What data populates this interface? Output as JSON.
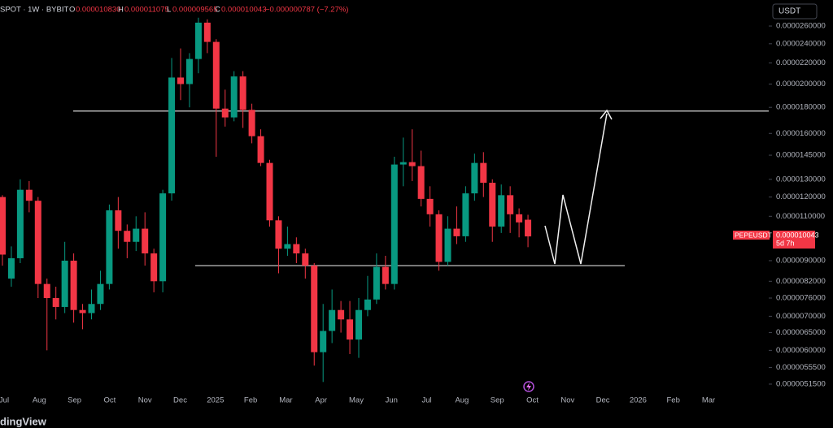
{
  "header": {
    "symbol": "SPOT · 1W · BYBIT",
    "open_label": "O",
    "open": "0.000010830",
    "high_label": "H",
    "high": "0.000011075",
    "low_label": "L",
    "low": "0.000009565",
    "close_label": "C",
    "close": "0.000010043",
    "change": "−0.000000787 (−7.27%)"
  },
  "currency_button": "USDT",
  "price_tag": {
    "symbol": "PEPEUSDT",
    "price": "0.000010043",
    "countdown": "5d 7h"
  },
  "watermark": "dingView",
  "chart_data": {
    "type": "candlestick",
    "log_scale": true,
    "up_color": "#089981",
    "down_color": "#f23645",
    "ylim": [
      4.95e-06,
      2.75e-05
    ],
    "yticks": [
      {
        "value": 2.6e-05,
        "label": "0.0000260000"
      },
      {
        "value": 2.4e-05,
        "label": "0.0000240000"
      },
      {
        "value": 2.2e-05,
        "label": "0.0000220000"
      },
      {
        "value": 2e-05,
        "label": "0.0000200000"
      },
      {
        "value": 1.8e-05,
        "label": "0.0000180000"
      },
      {
        "value": 1.6e-05,
        "label": "0.0000160000"
      },
      {
        "value": 1.45e-05,
        "label": "0.0000145000"
      },
      {
        "value": 1.3e-05,
        "label": "0.0000130000"
      },
      {
        "value": 1.2e-05,
        "label": "0.0000120000"
      },
      {
        "value": 1.1e-05,
        "label": "0.0000110000"
      },
      {
        "value": 9e-06,
        "label": "0.0000090000"
      },
      {
        "value": 8.2e-06,
        "label": "0.0000082000"
      },
      {
        "value": 7.6e-06,
        "label": "0.0000076000"
      },
      {
        "value": 7e-06,
        "label": "0.0000070000"
      },
      {
        "value": 6.5e-06,
        "label": "0.0000065000"
      },
      {
        "value": 6e-06,
        "label": "0.0000060000"
      },
      {
        "value": 5.55e-06,
        "label": "0.0000055500"
      },
      {
        "value": 5.15e-06,
        "label": "0.0000051500"
      }
    ],
    "x_labels": [
      "Jul",
      "Aug",
      "Sep",
      "Oct",
      "Nov",
      "Dec",
      "2025",
      "Feb",
      "Mar",
      "Apr",
      "May",
      "Jun",
      "Jul",
      "Aug",
      "Sep",
      "Oct",
      "Nov",
      "Dec",
      "2026",
      "Feb",
      "Mar"
    ],
    "open": [
      1.2e-05,
      8.3e-06,
      9.1e-06,
      1.24e-05,
      1.18e-05,
      8.1e-06,
      7.6e-06,
      7.3e-06,
      9e-06,
      7.2e-06,
      7.1e-06,
      7.4e-06,
      8.1e-06,
      1.13e-05,
      1.03e-05,
      9.8e-06,
      1.04e-05,
      9.3e-06,
      8.2e-06,
      1.22e-05,
      2.06e-05,
      2e-05,
      2.24e-05,
      2.64e-05,
      2.42e-05,
      1.79e-05,
      1.72e-05,
      2.07e-05,
      1.78e-05,
      1.58e-05,
      1.4e-05,
      1.08e-05,
      9.5e-06,
      9.7e-06,
      9.3e-06,
      8.8e-06,
      5.95e-06,
      6.55e-06,
      7.2e-06,
      6.9e-06,
      6.3e-06,
      7.2e-06,
      7.55e-06,
      8.75e-06,
      8.1e-06,
      1.39e-05,
      1.405e-05,
      1.38e-05,
      1.19e-05,
      1.11e-05,
      8.95e-06,
      1.04e-05,
      1.005e-05,
      1.22e-05,
      1.4e-05,
      1.28e-05,
      1.05e-05,
      1.21e-05,
      1.11e-05,
      1.083e-05
    ],
    "high": [
      1.21e-05,
      9.6e-06,
      1.3e-05,
      1.29e-05,
      1.2e-05,
      8.3e-06,
      8e-06,
      9.8e-06,
      9.3e-06,
      7.4e-06,
      7.9e-06,
      8.6e-06,
      1.16e-05,
      1.2e-05,
      1.06e-05,
      1.1e-05,
      1.12e-05,
      9.5e-06,
      1.24e-05,
      2.25e-05,
      2.35e-05,
      2.3e-05,
      2.7e-05,
      2.68e-05,
      2.45e-05,
      1.95e-05,
      2.12e-05,
      2.12e-05,
      1.83e-05,
      1.63e-05,
      1.42e-05,
      1.1e-05,
      1.05e-05,
      1e-05,
      9.5e-06,
      8.9e-06,
      7.4e-06,
      7.9e-06,
      7.5e-06,
      7.5e-06,
      7.6e-06,
      8.4e-06,
      9.3e-06,
      9.2e-06,
      1.44e-05,
      1.57e-05,
      1.63e-05,
      1.48e-05,
      1.26e-05,
      1.13e-05,
      1.1e-05,
      1.15e-05,
      1.26e-05,
      1.46e-05,
      1.47e-05,
      1.3e-05,
      1.27e-05,
      1.26e-05,
      1.14e-05,
      1.1075e-05
    ],
    "low": [
      8.8e-06,
      8e-06,
      8.9e-06,
      1.12e-05,
      7.6e-06,
      6e-06,
      6.9e-06,
      7.1e-06,
      6.8e-06,
      6.6e-06,
      6.9e-06,
      7.2e-06,
      7.9e-06,
      9.5e-06,
      9.1e-06,
      9.4e-06,
      8.8e-06,
      7.8e-06,
      7.8e-06,
      1.18e-05,
      1.86e-05,
      1.8e-05,
      2.1e-05,
      2.3e-05,
      1.44e-05,
      1.65e-05,
      1.69e-05,
      1.64e-05,
      1.53e-05,
      1.38e-05,
      1.05e-05,
      8.5e-06,
      9.2e-06,
      8.9e-06,
      8.3e-06,
      5.6e-06,
      5.2e-06,
      6.2e-06,
      6.5e-06,
      5.9e-06,
      5.8e-06,
      7e-06,
      7.4e-06,
      7.9e-06,
      7.9e-06,
      1.26e-05,
      1.29e-05,
      1.15e-05,
      1.05e-05,
      8.6e-06,
      8.8e-06,
      9.7e-06,
      9.8e-06,
      1.18e-05,
      1.2e-05,
      9.8e-06,
      1.02e-05,
      1.02e-05,
      1e-05,
      9.565e-06
    ],
    "close": [
      9.25e-06,
      9.1e-06,
      1.24e-05,
      1.18e-05,
      8.1e-06,
      7.6e-06,
      7.3e-06,
      9e-06,
      7.2e-06,
      7.1e-06,
      7.4e-06,
      8.1e-06,
      1.13e-05,
      1.03e-05,
      9.8e-06,
      1.04e-05,
      9.3e-06,
      8.2e-06,
      1.22e-05,
      2.06e-05,
      2e-05,
      2.24e-05,
      2.64e-05,
      2.42e-05,
      1.79e-05,
      1.72e-05,
      2.07e-05,
      1.78e-05,
      1.58e-05,
      1.4e-05,
      1.08e-05,
      9.5e-06,
      9.7e-06,
      9.3e-06,
      8.8e-06,
      5.95e-06,
      6.55e-06,
      7.2e-06,
      6.9e-06,
      6.3e-06,
      7.2e-06,
      7.55e-06,
      8.75e-06,
      8.1e-06,
      1.39e-05,
      1.405e-05,
      1.38e-05,
      1.19e-05,
      1.11e-05,
      8.95e-06,
      1.04e-05,
      1.005e-05,
      1.22e-05,
      1.4e-05,
      1.28e-05,
      1.05e-05,
      1.21e-05,
      1.11e-05,
      1.07e-05,
      1.0043e-05
    ],
    "levels": [
      1.77e-05,
      8.8e-06
    ],
    "level_color": "#d9d9d9"
  }
}
